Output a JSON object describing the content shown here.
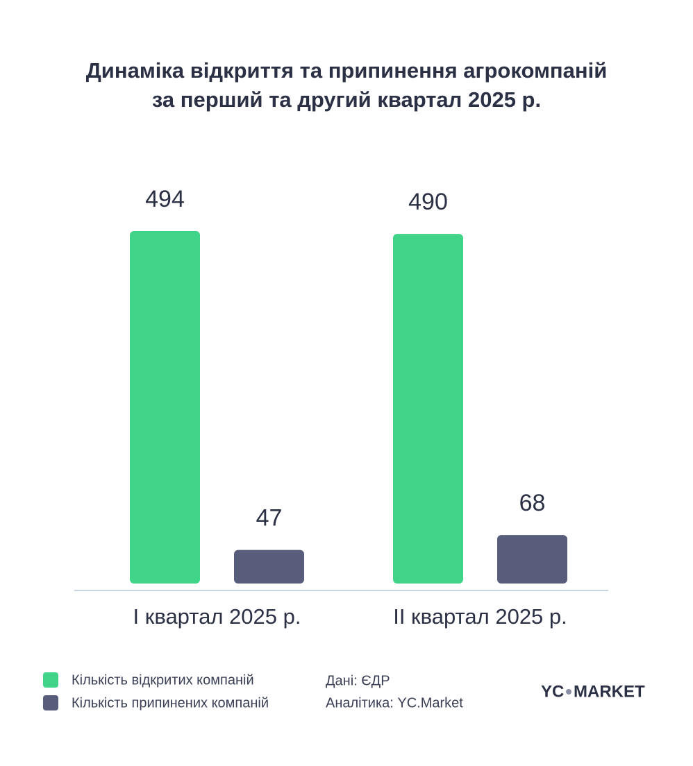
{
  "chart_data": {
    "type": "bar",
    "title": [
      "Динаміка відкриття та припинення агрокомпаній",
      "за перший та другий квартал 2025 р."
    ],
    "categories": [
      "I квартал 2025 р.",
      "II квартал 2025 р."
    ],
    "series": [
      {
        "name": "Кількість відкритих компаній",
        "color": "#3fd488",
        "values": [
          494,
          490
        ]
      },
      {
        "name": "Кількість припинених компаній",
        "color": "#575d7a",
        "values": [
          47,
          68
        ]
      }
    ]
  },
  "source": "Дані: ЄДР",
  "analytics": "Аналітика: YC.Market",
  "logo": [
    "YC",
    "MARKET"
  ]
}
